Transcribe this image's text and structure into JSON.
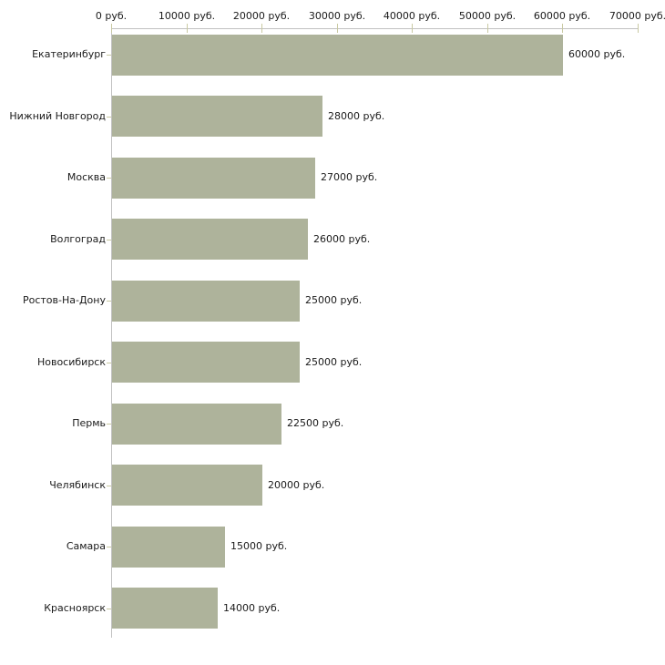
{
  "chart_data": {
    "type": "bar",
    "orientation": "horizontal",
    "title": "",
    "xlabel": "",
    "ylabel": "",
    "categories": [
      "Екатеринбург",
      "Нижний Новгород",
      "Москва",
      "Волгоград",
      "Ростов-На-Дону",
      "Новосибирск",
      "Пермь",
      "Челябинск",
      "Самара",
      "Красноярск"
    ],
    "values": [
      60000,
      28000,
      27000,
      26000,
      25000,
      25000,
      22500,
      20000,
      15000,
      14000
    ],
    "value_labels": [
      "60000 руб.",
      "28000 руб.",
      "27000 руб.",
      "26000 руб.",
      "25000 руб.",
      "25000 руб.",
      "22500 руб.",
      "20000 руб.",
      "15000 руб.",
      "14000 руб."
    ],
    "x_axis": {
      "position": "top",
      "range": [
        0,
        70000
      ],
      "ticks": [
        0,
        10000,
        20000,
        30000,
        40000,
        50000,
        60000,
        70000
      ],
      "tick_labels": [
        "0 руб.",
        "10000 руб.",
        "20000 руб.",
        "30000 руб.",
        "40000 руб.",
        "50000 руб.",
        "60000 руб.",
        "70000 руб."
      ]
    },
    "grid": false,
    "legend": false,
    "colors": {
      "bar": "#aeb39b",
      "axis_line": "#c1c1c1",
      "tick_mark": "#c9c9a2",
      "text": "#1a1a1a",
      "background": "#ffffff"
    }
  }
}
